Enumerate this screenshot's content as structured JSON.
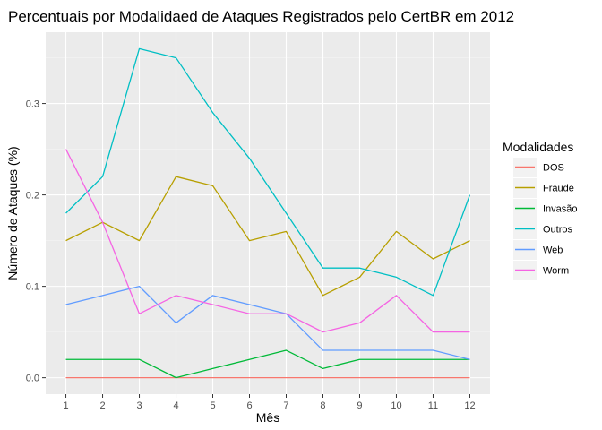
{
  "chart_data": {
    "type": "line",
    "title": "Percentuais por Modalidaed de Ataques Registrados pelo CertBR em 2012",
    "xlabel": "Mês",
    "ylabel": "Número de Ataques (%)",
    "x": [
      1,
      2,
      3,
      4,
      5,
      6,
      7,
      8,
      9,
      10,
      11,
      12
    ],
    "x_ticks": [
      "1",
      "2",
      "3",
      "4",
      "5",
      "6",
      "7",
      "8",
      "9",
      "10",
      "11",
      "12"
    ],
    "y_ticks": [
      0.0,
      0.1,
      0.2,
      0.3
    ],
    "y_tick_labels": [
      "0.0",
      "0.1",
      "0.2",
      "0.3"
    ],
    "xlim": [
      0.45,
      12.55
    ],
    "ylim": [
      -0.018,
      0.378
    ],
    "grid": true,
    "legend_title": "Modalidades",
    "legend_position": "right",
    "series": [
      {
        "name": "DOS",
        "color": "#F8766D",
        "values": [
          0,
          0,
          0,
          0,
          0,
          0,
          0,
          0,
          0,
          0,
          0,
          0
        ]
      },
      {
        "name": "Fraude",
        "color": "#B79F00",
        "values": [
          0.15,
          0.17,
          0.15,
          0.22,
          0.21,
          0.15,
          0.16,
          0.09,
          0.11,
          0.16,
          0.13,
          0.15
        ]
      },
      {
        "name": "Invasão",
        "color": "#00BA38",
        "values": [
          0.02,
          0.02,
          0.02,
          0.0,
          0.01,
          0.02,
          0.03,
          0.01,
          0.02,
          0.02,
          0.02,
          0.02
        ]
      },
      {
        "name": "Outros",
        "color": "#00BFC4",
        "values": [
          0.18,
          0.22,
          0.36,
          0.35,
          0.29,
          0.24,
          0.18,
          0.12,
          0.12,
          0.11,
          0.09,
          0.2
        ]
      },
      {
        "name": "Web",
        "color": "#619CFF",
        "values": [
          0.08,
          0.09,
          0.1,
          0.06,
          0.09,
          0.08,
          0.07,
          0.03,
          0.03,
          0.03,
          0.03,
          0.02
        ]
      },
      {
        "name": "Worm",
        "color": "#F564E3",
        "values": [
          0.25,
          0.17,
          0.07,
          0.09,
          0.08,
          0.07,
          0.07,
          0.05,
          0.06,
          0.09,
          0.05,
          0.05
        ]
      }
    ]
  }
}
